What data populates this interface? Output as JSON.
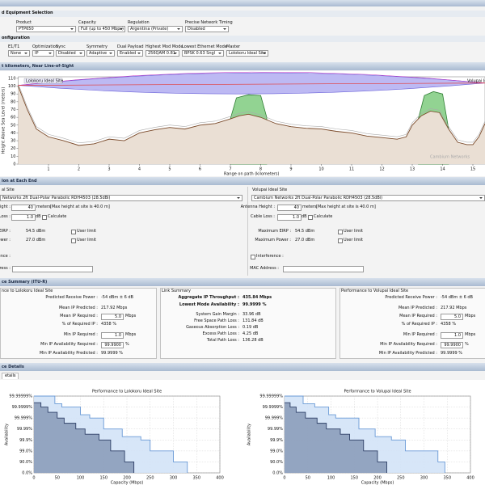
{
  "equipment": {
    "title": "d Equipment Selection",
    "fields": [
      {
        "label": "Product",
        "value": "PTP650"
      },
      {
        "label": "Capacity",
        "value": "Full (up to 450 Mbps)"
      },
      {
        "label": "Regulation",
        "value": "Argentina (Private)"
      },
      {
        "label": "Precise Network Timing",
        "value": "Disabled"
      }
    ]
  },
  "configuration": {
    "title": "onfiguration",
    "fields": [
      {
        "label": "E1/T1",
        "value": "None"
      },
      {
        "label": "Optimization",
        "value": "IP"
      },
      {
        "label": "Sync",
        "value": "Disabled"
      },
      {
        "label": "Symmetry",
        "value": "Adaptive"
      },
      {
        "label": "Dual Payload",
        "value": "Enabled"
      },
      {
        "label": "Highest Mod Mode",
        "value": "256QAM 0.81"
      },
      {
        "label": "Lowest Ethernet Mode",
        "value": "BPSK 0.63 Sngl"
      },
      {
        "label": "Master",
        "value": "Lolokoru Ideal Site"
      }
    ]
  },
  "profile": {
    "title": "t kilometers, Near Line-of-Sight",
    "chart_data": {
      "type": "area",
      "x_label": "Range on path (kilometers)",
      "y_label": "Height Above Sea Level (meters)",
      "sites": [
        "Lolokoru Ideal Site",
        "Volupai Ideal Site"
      ],
      "watermark": "Cambium Networks",
      "xlim": [
        0,
        15.4
      ],
      "xticks": [
        1,
        2,
        3,
        4,
        5,
        6,
        7,
        8,
        9,
        10,
        11,
        12,
        13,
        14,
        15
      ],
      "ylim": [
        0,
        112
      ],
      "yticks": [
        0,
        10,
        20,
        30,
        40,
        50,
        60,
        70,
        80,
        90,
        100,
        110
      ],
      "terrain": {
        "color": "#7a4a2a",
        "fill": "#eadfd4",
        "x": [
          0,
          0.3,
          0.6,
          1,
          1.5,
          2,
          2.5,
          3,
          3.5,
          4,
          4.5,
          5,
          5.5,
          6,
          6.5,
          7,
          7.3,
          7.6,
          8,
          8.5,
          9,
          9.5,
          10,
          10.5,
          11,
          11.5,
          12,
          12.5,
          12.8,
          13,
          13.3,
          13.6,
          13.9,
          14.2,
          14.5,
          14.8,
          15,
          15.2,
          15.4
        ],
        "values": [
          100,
          70,
          45,
          35,
          30,
          24,
          26,
          32,
          30,
          40,
          44,
          47,
          45,
          50,
          52,
          58,
          62,
          64,
          60,
          52,
          48,
          46,
          45,
          42,
          40,
          36,
          34,
          32,
          35,
          50,
          62,
          68,
          66,
          45,
          28,
          25,
          25,
          35,
          52
        ]
      },
      "clutter": [
        {
          "color": "#2e7d32",
          "fill": "#92d392",
          "x": [
            7.0,
            7.2,
            7.6,
            8.0,
            8.2
          ],
          "values": [
            58,
            85,
            89,
            88,
            60
          ]
        },
        {
          "color": "#2e7d32",
          "fill": "#92d392",
          "x": [
            13.2,
            13.4,
            13.7,
            14.0,
            14.2
          ],
          "values": [
            58,
            88,
            93,
            90,
            45
          ]
        }
      ],
      "line_of_sight": {
        "color": "#e53935",
        "x": [
          0,
          15.4
        ],
        "values": [
          101,
          104
        ]
      }
    }
  },
  "ends": {
    "title": "ion at Each End",
    "sites": [
      {
        "site": "al Site",
        "antenna": "Networks 2ft Dual-Polar Parabolic RDH4503 (28.5dBi)",
        "height_label": "eight :",
        "height": "40",
        "height_unit": "meters",
        "height_note": "[Max height at site is 40.0 m]",
        "cable_label": "Loss :",
        "cable": "1.0",
        "cable_unit": "dB",
        "calculate": "Calculate",
        "eirp_label": "EIRP :",
        "eirp": "54.5 dBm",
        "eirp_limit": "User limit",
        "power_label": "ower :",
        "power": "27.0 dBm",
        "power_limit": "User limit",
        "interference_label": "ference :",
        "mac_label": "ddress :"
      },
      {
        "site": "Volupai Ideal Site",
        "antenna": "Cambium Networks 2ft Dual-Polar Parabolic RDH4503 (28.5dBi)",
        "height_label": "Antenna Height :",
        "height": "40",
        "height_unit": "meters",
        "height_note": "[Max height at site is 40.0 m]",
        "cable_label": "Cable Loss :",
        "cable": "1.0",
        "cable_unit": "dB",
        "calculate": "Calculate",
        "eirp_label": "Maximum EIRP :",
        "eirp": "54.5 dBm",
        "eirp_limit": "User limit",
        "power_label": "Maximum Power :",
        "power": "27.0 dBm",
        "power_limit": "User limit",
        "interference_label": "Interference :",
        "mac_label": "MAC Address :"
      }
    ]
  },
  "summary": {
    "title": "ce Summary (ITU-R)",
    "panels": [
      {
        "title": "nce to Lolokoru Ideal Site",
        "rows": [
          {
            "label": "Predicted Receive Power :",
            "value": "-54 dBm ± 6 dB"
          },
          {
            "label": "Mean IP Predicted :",
            "value": "217.92 Mbps"
          },
          {
            "label": "Mean IP Required :",
            "value": "5.0",
            "unit": "Mbps"
          },
          {
            "label": "% of Required IP :",
            "value": "4358 %"
          },
          {
            "label": "Min IP Required :",
            "value": "1.0",
            "unit": "Mbps"
          },
          {
            "label": "Min IP Availability Required :",
            "value": "99.9900",
            "unit": "%"
          },
          {
            "label": "Min IP Availability Predicted :",
            "value": "99.9999 %"
          }
        ]
      },
      {
        "title": "Link Summary",
        "rows": [
          {
            "label": "Aggregate IP Throughput :",
            "value": "435.84 Mbps"
          },
          {
            "label": "Lowest Mode Availability :",
            "value": "99.9999 %"
          },
          {
            "label": "System Gain Margin :",
            "value": "33.96 dB"
          },
          {
            "label": "Free Space Path Loss :",
            "value": "131.84 dB"
          },
          {
            "label": "Gaseous Absorption Loss :",
            "value": "0.19 dB"
          },
          {
            "label": "Excess Path Loss :",
            "value": "4.25 dB"
          },
          {
            "label": "Total Path Loss :",
            "value": "136.28 dB"
          }
        ]
      },
      {
        "title": "Performance to Volupai Ideal Site",
        "rows": [
          {
            "label": "Predicted Receive Power :",
            "value": "-54 dBm ± 6 dB"
          },
          {
            "label": "Mean IP Predicted :",
            "value": "217.92 Mbps"
          },
          {
            "label": "Mean IP Required :",
            "value": "5.0",
            "unit": "Mbps"
          },
          {
            "label": "% of Required IP :",
            "value": "4358 %"
          },
          {
            "label": "Min IP Required :",
            "value": "1.0",
            "unit": "Mbps"
          },
          {
            "label": "Min IP Availability Required :",
            "value": "99.9900",
            "unit": "%"
          },
          {
            "label": "Min IP Availability Predicted :",
            "value": "99.9999 %"
          }
        ]
      }
    ]
  },
  "details": {
    "title": "ce Details",
    "tab": "etails",
    "charts": [
      {
        "type": "step",
        "title": "Performance to Lolokoru Ideal Site",
        "x_label": "Capacity (Mbps)",
        "y_label": "Availability",
        "xlim": [
          0,
          400
        ],
        "xticks": [
          0,
          50,
          100,
          150,
          200,
          250,
          300,
          350,
          400
        ],
        "ylim": [
          0,
          99.99999
        ],
        "yscale": "nines",
        "grid": true,
        "yticks": [
          {
            "value": 0,
            "label": "0.0%"
          },
          {
            "value": 90,
            "label": "90.0%"
          },
          {
            "value": 99,
            "label": "99.0%"
          },
          {
            "value": 99.9,
            "label": "99.9%"
          },
          {
            "value": 99.99,
            "label": "99.99%"
          },
          {
            "value": 99.999,
            "label": "99.999%"
          },
          {
            "value": 99.9999,
            "label": "99.9999%"
          },
          {
            "value": 99.99999,
            "label": "99.99999%"
          }
        ],
        "series": [
          {
            "color": "#6a9ad6",
            "fill": "#d3e3f7",
            "x": [
              0,
              45,
              60,
              100,
              120,
              150,
              190,
              230,
              250,
              300,
              330
            ],
            "values": [
              99.99999,
              99.99995,
              99.9999,
              99.9995,
              99.999,
              99.99,
              99.95,
              99.9,
              99.0,
              90.0,
              0
            ]
          },
          {
            "color": "#2e3f66",
            "fill": "#8c9dba",
            "x": [
              0,
              15,
              30,
              50,
              65,
              90,
              110,
              140,
              165,
              195,
              215
            ],
            "values": [
              99.99996,
              99.9999,
              99.9997,
              99.999,
              99.997,
              99.99,
              99.97,
              99.9,
              99.0,
              90.0,
              0
            ]
          }
        ]
      },
      {
        "type": "step",
        "title": "Performance to Volupai Ideal Site",
        "x_label": "Capacity (Mbps)",
        "y_label": "Availability",
        "xlim": [
          0,
          400
        ],
        "xticks": [
          0,
          50,
          100,
          150,
          200,
          250,
          300,
          350,
          400
        ],
        "ylim": [
          0,
          99.99999
        ],
        "yscale": "nines",
        "grid": true,
        "yticks": [
          {
            "value": 0,
            "label": "0.0%"
          },
          {
            "value": 90,
            "label": "90.0%"
          },
          {
            "value": 99,
            "label": "99.0%"
          },
          {
            "value": 99.9,
            "label": "99.9%"
          },
          {
            "value": 99.99,
            "label": "99.99%"
          },
          {
            "value": 99.999,
            "label": "99.999%"
          },
          {
            "value": 99.9999,
            "label": "99.9999%"
          },
          {
            "value": 99.99999,
            "label": "99.99999%"
          }
        ],
        "series": [
          {
            "color": "#6a9ad6",
            "fill": "#d3e3f7",
            "x": [
              0,
              40,
              65,
              95,
              110,
              160,
              195,
              230,
              260,
              330,
              345
            ],
            "values": [
              99.99999,
              99.99995,
              99.9999,
              99.9995,
              99.999,
              99.99,
              99.95,
              99.9,
              99.0,
              90.0,
              0
            ]
          },
          {
            "color": "#2e3f66",
            "fill": "#8c9dba",
            "x": [
              0,
              12,
              25,
              45,
              70,
              90,
              120,
              140,
              170,
              200,
              220
            ],
            "values": [
              99.99996,
              99.9999,
              99.9997,
              99.999,
              99.997,
              99.99,
              99.97,
              99.9,
              99.0,
              90.0,
              0
            ]
          }
        ]
      }
    ]
  }
}
